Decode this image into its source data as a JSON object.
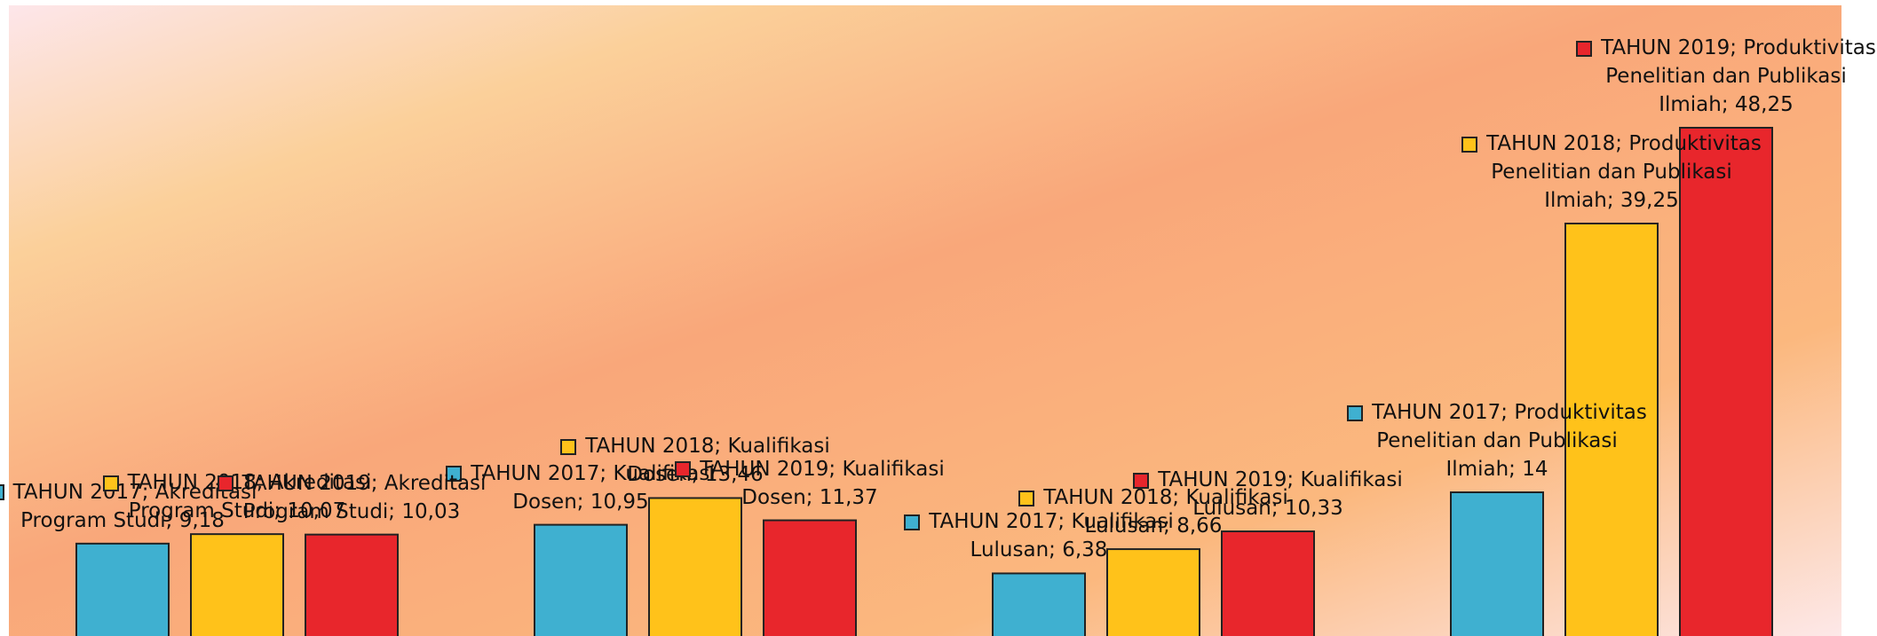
{
  "chart_data": {
    "type": "bar",
    "ylim": [
      0,
      60
    ],
    "series": [
      {
        "color": "#3fb0d0",
        "values": [
          9.18,
          10.95,
          6.38,
          14
        ],
        "value_labels": [
          "TAHUN 2017; Akreditasi Program Studi; 9,18",
          "TAHUN 2017; Kualifikasi Dosen; 10,95",
          "TAHUN 2017; Kualifikasi Lulusan; 6,38",
          "TAHUN 2017; Produktivitas Penelitian dan Publikasi Ilmiah; 14"
        ]
      },
      {
        "color": "#ffc21a",
        "values": [
          10.07,
          13.46,
          8.66,
          39.25
        ],
        "value_labels": [
          "TAHUN 2018; Akreditasi Program Studi; 10,07",
          "TAHUN 2018; Kualifikasi Dosen; 13,46",
          "TAHUN 2018; Kualifikasi Lulusan; 8,66",
          "TAHUN 2018; Produktivitas Penelitian dan Publikasi Ilmiah; 39,25"
        ]
      },
      {
        "color": "#e8262c",
        "values": [
          10.03,
          11.37,
          10.33,
          48.25
        ],
        "value_labels": [
          "TAHUN 2019; Akreditasi Program Studi; 10,03",
          "TAHUN 2019; Kualifikasi Dosen; 11,37",
          "TAHUN 2019; Kualifikasi Lulusan; 10,33",
          "TAHUN 2019; Produktivitas Penelitian dan Publikasi Ilmiah; 48,25"
        ]
      }
    ]
  }
}
